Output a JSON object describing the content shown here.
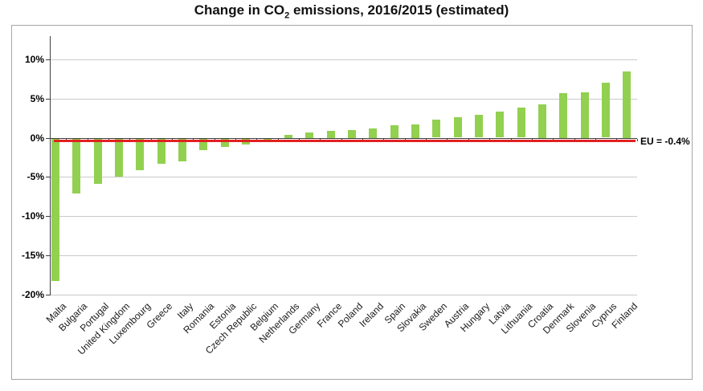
{
  "header": {
    "title_pre": "Change in CO",
    "title_sub": "2",
    "title_post": " emissions, 2016/2015 (estimated)"
  },
  "chart_data": {
    "type": "bar",
    "title": "Change in CO2 emissions, 2016/2015 (estimated)",
    "xlabel": "",
    "ylabel": "",
    "unit": "%",
    "grid": true,
    "ylim": [
      -20.35,
      13.0
    ],
    "y_ticks": [
      10,
      5,
      0,
      -5,
      -10,
      -15,
      -20
    ],
    "y_tick_labels": [
      "10%",
      "5%",
      "0%",
      "-5%",
      "-10%",
      "-15%",
      "-20%"
    ],
    "categories": [
      "Malta",
      "Bulgaria",
      "Portugal",
      "United Kingdom",
      "Luxembourg",
      "Greece",
      "Italy",
      "Romania",
      "Estonia",
      "Czech Republic",
      "Belgium",
      "Netherlands",
      "Germany",
      "France",
      "Poland",
      "Ireland",
      "Spain",
      "Slovakia",
      "Sweden",
      "Austria",
      "Hungary",
      "Latvia",
      "Lithuania",
      "Croatia",
      "Denmark",
      "Slovenia",
      "Cyprus",
      "Finland"
    ],
    "values": [
      -18.2,
      -7.0,
      -5.7,
      -4.8,
      -4.0,
      -3.2,
      -2.9,
      -1.4,
      -1.0,
      -0.7,
      -0.4,
      0.4,
      0.7,
      0.9,
      1.0,
      1.2,
      1.6,
      1.7,
      2.3,
      2.6,
      2.9,
      3.3,
      3.8,
      4.3,
      5.7,
      5.8,
      7.0,
      8.5
    ],
    "reference_line": {
      "value": -0.4,
      "label": "EU = -0.4%",
      "color": "#e12120"
    },
    "colors": {
      "bar": "#92d050",
      "grid": "#c9c9c9",
      "axis": "#3f3f3f",
      "border": "#a6a6a6",
      "text": "#000000"
    }
  }
}
